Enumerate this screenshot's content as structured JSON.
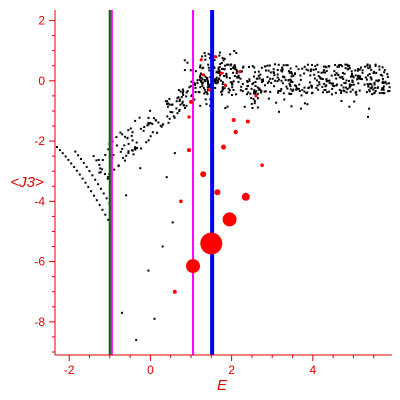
{
  "chart_data": {
    "type": "scatter",
    "title": "",
    "xlabel": "E",
    "ylabel": "<J3>",
    "xlim": [
      -2.35,
      5.95
    ],
    "ylim": [
      -9.1,
      2.35
    ],
    "grid": false,
    "x_ticks": [
      -2,
      0,
      2,
      4
    ],
    "x_tick_labels": [
      "-2",
      "0",
      "2",
      "4"
    ],
    "y_ticks": [
      2,
      0,
      -2,
      -4,
      -6,
      -8
    ],
    "y_tick_labels": [
      "2",
      "0",
      "-2",
      "-4",
      "-6",
      "-8"
    ],
    "colors": {
      "axis": "#e00000",
      "points": "#000000",
      "bubbles": "#ff0000",
      "line_green": "#006600",
      "line_magenta": "#ff00ff",
      "line_blue": "#0000ff"
    },
    "vertical_lines": [
      {
        "x": -1.0,
        "color": "#006600"
      },
      {
        "x": -0.95,
        "color": "#ff00ff"
      },
      {
        "x": 1.05,
        "color": "#ff00ff"
      },
      {
        "x": 1.52,
        "color": "#0000ff"
      }
    ],
    "red_points": [
      {
        "x": 1.5,
        "y": -5.4,
        "size": 11
      },
      {
        "x": 1.05,
        "y": -6.15,
        "size": 7
      },
      {
        "x": 1.95,
        "y": -4.6,
        "size": 7
      },
      {
        "x": 2.35,
        "y": -3.85,
        "size": 4
      },
      {
        "x": 1.3,
        "y": -3.1,
        "size": 3
      },
      {
        "x": 1.65,
        "y": -3.7,
        "size": 3
      },
      {
        "x": 1.8,
        "y": -2.2,
        "size": 2.5
      },
      {
        "x": 2.1,
        "y": -1.7,
        "size": 2.2
      },
      {
        "x": 2.05,
        "y": -1.3,
        "size": 2
      },
      {
        "x": 2.4,
        "y": -1.35,
        "size": 2
      },
      {
        "x": 0.95,
        "y": -2.3,
        "size": 2
      },
      {
        "x": 1.0,
        "y": -0.7,
        "size": 2
      },
      {
        "x": 0.75,
        "y": -4.0,
        "size": 1.8
      },
      {
        "x": 0.6,
        "y": -7.0,
        "size": 2
      },
      {
        "x": 2.75,
        "y": -2.8,
        "size": 1.8
      },
      {
        "x": 0.95,
        "y": -1.2,
        "size": 1.6
      },
      {
        "x": 1.45,
        "y": -0.3,
        "size": 1.6
      },
      {
        "x": 1.75,
        "y": 0.25,
        "size": 1.6
      },
      {
        "x": 2.2,
        "y": 0.3,
        "size": 1.6
      },
      {
        "x": 2.6,
        "y": -0.5,
        "size": 1.6
      },
      {
        "x": 1.25,
        "y": 0.7,
        "size": 1.6
      },
      {
        "x": 1.6,
        "y": 0.8,
        "size": 1.6
      },
      {
        "x": 1.85,
        "y": -0.15,
        "size": 1.6
      },
      {
        "x": 1.3,
        "y": 0.2,
        "size": 1.6
      }
    ]
  }
}
